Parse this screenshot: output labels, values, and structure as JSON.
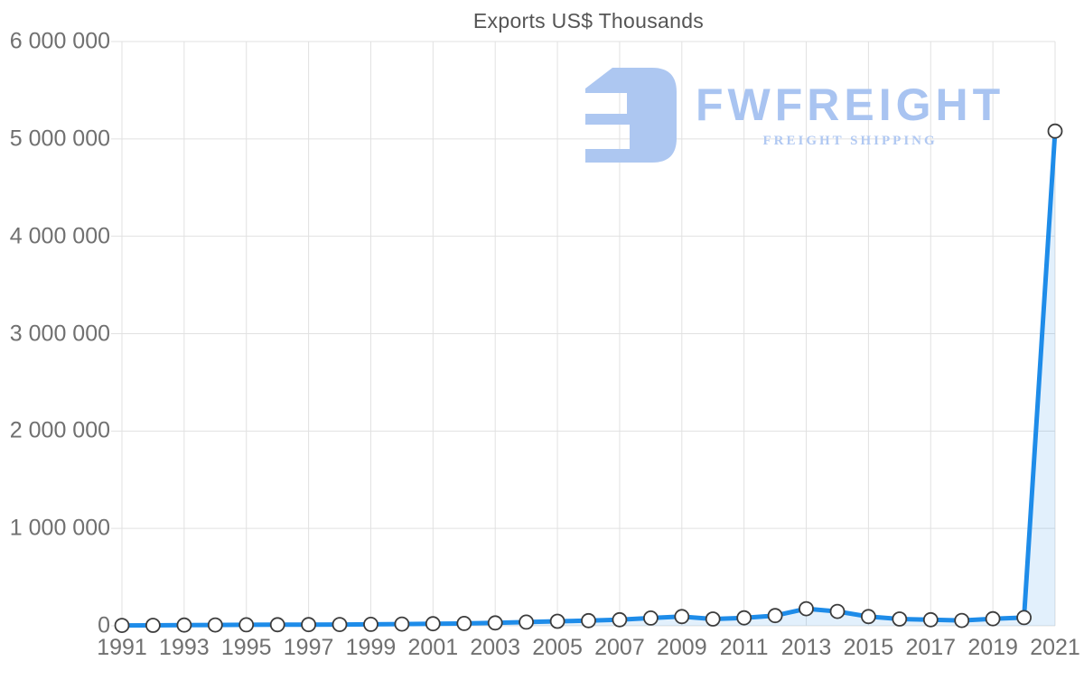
{
  "title": "Exports US$ Thousands",
  "watermark": {
    "brand": "FWFREIGHT",
    "tagline": "FREIGHT SHIPPING",
    "icon_color": "#adc7f1",
    "brand_color": "#a9c4f1",
    "tagline_color": "#b0c8f2"
  },
  "chart_data": {
    "type": "line",
    "title": "Exports US$ Thousands",
    "x": [
      1991,
      1992,
      1993,
      1994,
      1995,
      1996,
      1997,
      1998,
      1999,
      2000,
      2001,
      2002,
      2003,
      2004,
      2005,
      2006,
      2007,
      2008,
      2009,
      2010,
      2011,
      2012,
      2013,
      2014,
      2015,
      2016,
      2017,
      2018,
      2019,
      2020,
      2021
    ],
    "series": [
      {
        "name": "Exports US$ Thousands",
        "values": [
          4000,
          4500,
          7000,
          8000,
          10000,
          11000,
          12000,
          13000,
          15000,
          18000,
          21000,
          24000,
          30000,
          38000,
          46000,
          53000,
          62000,
          80000,
          95000,
          70000,
          82000,
          105000,
          175000,
          147000,
          95000,
          70000,
          62000,
          55000,
          72000,
          84000,
          5080000
        ]
      }
    ],
    "xlim": [
      1991,
      2021
    ],
    "ylim": [
      0,
      6000000
    ],
    "x_ticks": [
      {
        "value": 1991,
        "label": "1991"
      },
      {
        "value": 1993,
        "label": "1993"
      },
      {
        "value": 1995,
        "label": "1995"
      },
      {
        "value": 1997,
        "label": "1997"
      },
      {
        "value": 1999,
        "label": "1999"
      },
      {
        "value": 2001,
        "label": "2001"
      },
      {
        "value": 2003,
        "label": "2003"
      },
      {
        "value": 2005,
        "label": "2005"
      },
      {
        "value": 2007,
        "label": "2007"
      },
      {
        "value": 2009,
        "label": "2009"
      },
      {
        "value": 2011,
        "label": "2011"
      },
      {
        "value": 2013,
        "label": "2013"
      },
      {
        "value": 2015,
        "label": "2015"
      },
      {
        "value": 2017,
        "label": "2017"
      },
      {
        "value": 2019,
        "label": "2019"
      },
      {
        "value": 2021,
        "label": "2021"
      }
    ],
    "y_ticks": [
      {
        "value": 0,
        "label": "0"
      },
      {
        "value": 1000000,
        "label": "1 000 000"
      },
      {
        "value": 2000000,
        "label": "2 000 000"
      },
      {
        "value": 3000000,
        "label": "3 000 000"
      },
      {
        "value": 4000000,
        "label": "4 000 000"
      },
      {
        "value": 5000000,
        "label": "5 000 000"
      },
      {
        "value": 6000000,
        "label": "6 000 000"
      }
    ],
    "grid": true,
    "legend_position": "none",
    "line_color": "#1e8ce9",
    "area_fill": "rgba(30,140,233,0.13)",
    "grid_color": "#e1e1e1",
    "marker_fill": "#ffffff",
    "marker_stroke": "#3c3c3c"
  }
}
